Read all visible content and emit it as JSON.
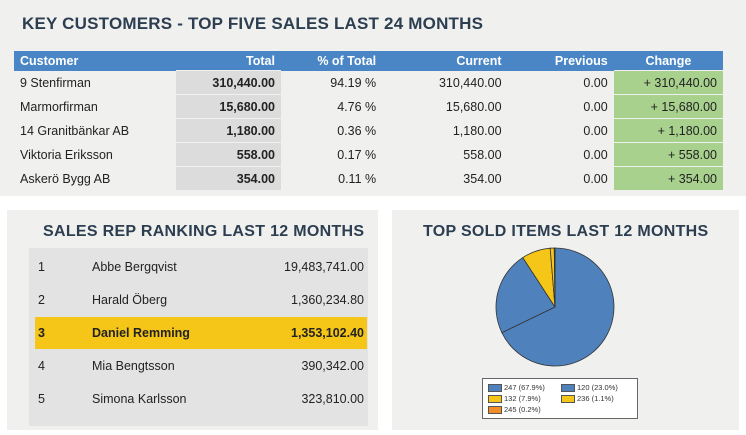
{
  "key_customers": {
    "title": "KEY CUSTOMERS - TOP FIVE SALES LAST 24 MONTHS",
    "columns": [
      "Customer",
      "Total",
      "% of Total",
      "Current",
      "Previous",
      "Change"
    ],
    "rows": [
      {
        "customer": "9 Stenfirman",
        "total": "310,440.00",
        "pct": "94.19 %",
        "current": "310,440.00",
        "previous": "0.00",
        "change": "+ 310,440.00"
      },
      {
        "customer": "Marmorfirman",
        "total": "15,680.00",
        "pct": "4.76 %",
        "current": "15,680.00",
        "previous": "0.00",
        "change": "+ 15,680.00"
      },
      {
        "customer": "14 Granitbänkar AB",
        "total": "1,180.00",
        "pct": "0.36 %",
        "current": "1,180.00",
        "previous": "0.00",
        "change": "+ 1,180.00"
      },
      {
        "customer": "Viktoria Eriksson",
        "total": "558.00",
        "pct": "0.17 %",
        "current": "558.00",
        "previous": "0.00",
        "change": "+ 558.00"
      },
      {
        "customer": "Askerö Bygg AB",
        "total": "354.00",
        "pct": "0.11 %",
        "current": "354.00",
        "previous": "0.00",
        "change": "+ 354.00"
      }
    ],
    "colors": {
      "header": "#4a86c5",
      "total_bg": "#dcdcdc",
      "change_bg": "#a9d18e"
    }
  },
  "sales_rep_ranking": {
    "title": "SALES REP RANKING LAST 12 MONTHS",
    "rows": [
      {
        "rank": "1",
        "name": "Abbe Bergqvist",
        "amount": "19,483,741.00"
      },
      {
        "rank": "2",
        "name": "Harald Öberg",
        "amount": "1,360,234.80"
      },
      {
        "rank": "3",
        "name": "Daniel Remming",
        "amount": "1,353,102.40"
      },
      {
        "rank": "4",
        "name": "Mia Bengtsson",
        "amount": "390,342.00"
      },
      {
        "rank": "5",
        "name": "Simona Karlsson",
        "amount": "323,810.00"
      }
    ],
    "highlight_color": "#f5c518"
  },
  "top_sold_items": {
    "title": "TOP SOLD ITEMS LAST 12 MONTHS",
    "legend": [
      {
        "label": "247 (67.9%)",
        "color": "#4f81bd"
      },
      {
        "label": "120 (23.0%)",
        "color": "#4f81bd"
      },
      {
        "label": "132 (7.9%)",
        "color": "#f5c518"
      },
      {
        "label": "236 (1.1%)",
        "color": "#f5c518"
      },
      {
        "label": "245 (0.2%)",
        "color": "#f28c28"
      }
    ]
  },
  "chart_data": {
    "type": "pie",
    "title": "TOP SOLD ITEMS LAST 12 MONTHS",
    "categories": [
      "247",
      "120",
      "132",
      "236",
      "245"
    ],
    "values": [
      67.9,
      23.0,
      7.9,
      1.1,
      0.2
    ],
    "colors": [
      "#4f81bd",
      "#4f81bd",
      "#f5c518",
      "#f5c518",
      "#f28c28"
    ],
    "legend_position": "bottom"
  }
}
